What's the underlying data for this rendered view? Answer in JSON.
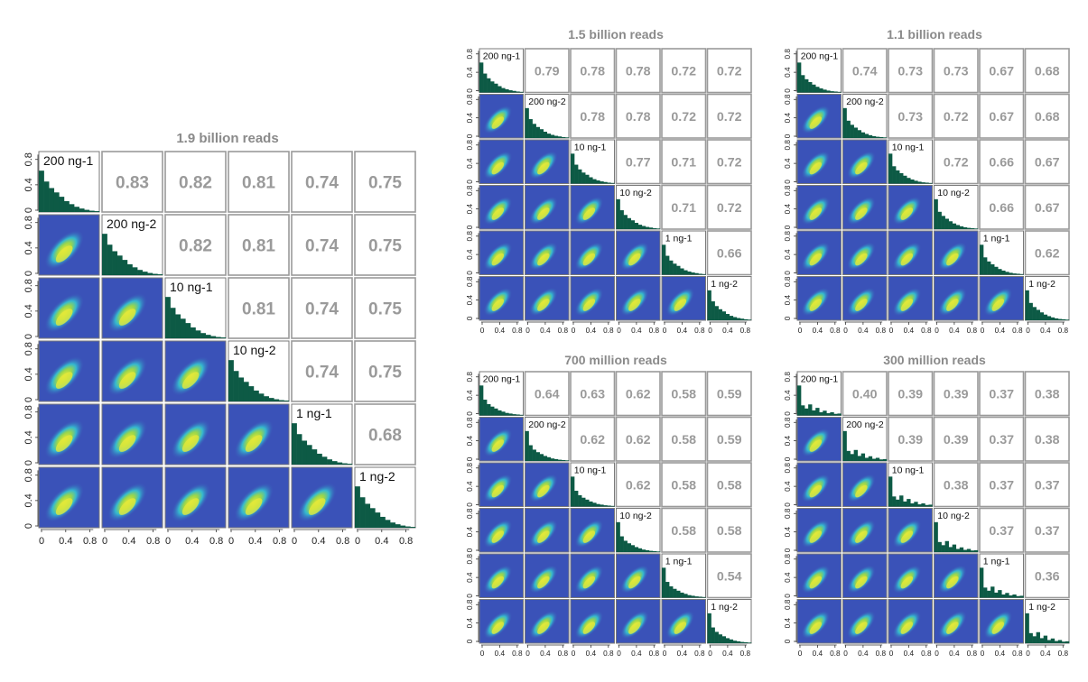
{
  "colors": {
    "histogram": "#0d5a45",
    "correlation_text": "#9a9a9a",
    "title_text": "#8a8a8a",
    "panel_border": "#9a9a9a",
    "density_low": "#3a52b8",
    "density_mid": "#35b9cf",
    "density_high": "#e3e83a"
  },
  "chart_data": [
    {
      "type": "heatmap",
      "title": "1.9 billion reads",
      "samples": [
        "200 ng-1",
        "200 ng-2",
        "10 ng-1",
        "10 ng-2",
        "1 ng-1",
        "1 ng-2"
      ],
      "correlations": [
        [
          "0.83",
          "0.82",
          "0.81",
          "0.74",
          "0.75"
        ],
        [
          "0.82",
          "0.81",
          "0.74",
          "0.75"
        ],
        [
          "0.81",
          "0.74",
          "0.75"
        ],
        [
          "0.74",
          "0.75"
        ],
        [
          "0.68"
        ]
      ],
      "histogram_density": [
        0.95,
        0.7,
        0.55,
        0.45,
        0.35,
        0.25,
        0.18,
        0.12,
        0.08,
        0.05,
        0.03,
        0.02
      ],
      "tick_labels": [
        "0",
        "0.4",
        "0.8"
      ],
      "xlim": [
        0,
        1
      ],
      "ylim": [
        0,
        1
      ]
    },
    {
      "type": "heatmap",
      "title": "1.5 billion reads",
      "samples": [
        "200 ng-1",
        "200 ng-2",
        "10 ng-1",
        "10 ng-2",
        "1 ng-1",
        "1 ng-2"
      ],
      "correlations": [
        [
          "0.79",
          "0.78",
          "0.78",
          "0.72",
          "0.72"
        ],
        [
          "0.78",
          "0.78",
          "0.72",
          "0.72"
        ],
        [
          "0.77",
          "0.71",
          "0.72"
        ],
        [
          "0.71",
          "0.72"
        ],
        [
          "0.66"
        ]
      ],
      "histogram_density": [
        0.95,
        0.6,
        0.45,
        0.35,
        0.28,
        0.2,
        0.14,
        0.1,
        0.07,
        0.05,
        0.03,
        0.02
      ],
      "tick_labels": [
        "0",
        "0.4",
        "0.8"
      ],
      "xlim": [
        0,
        1
      ],
      "ylim": [
        0,
        1
      ]
    },
    {
      "type": "heatmap",
      "title": "1.1 billion reads",
      "samples": [
        "200 ng-1",
        "200 ng-2",
        "10 ng-1",
        "10 ng-2",
        "1 ng-1",
        "1 ng-2"
      ],
      "correlations": [
        [
          "0.74",
          "0.73",
          "0.73",
          "0.67",
          "0.68"
        ],
        [
          "0.73",
          "0.72",
          "0.67",
          "0.68"
        ],
        [
          "0.72",
          "0.66",
          "0.67"
        ],
        [
          "0.66",
          "0.67"
        ],
        [
          "0.62"
        ]
      ],
      "histogram_density": [
        0.95,
        0.55,
        0.42,
        0.33,
        0.25,
        0.18,
        0.13,
        0.09,
        0.06,
        0.04,
        0.03,
        0.02
      ],
      "tick_labels": [
        "0",
        "0.4",
        "0.8"
      ],
      "xlim": [
        0,
        1
      ],
      "ylim": [
        0,
        1
      ]
    },
    {
      "type": "heatmap",
      "title": "700 million reads",
      "samples": [
        "200 ng-1",
        "200 ng-2",
        "10 ng-1",
        "10 ng-2",
        "1 ng-1",
        "1 ng-2"
      ],
      "correlations": [
        [
          "0.64",
          "0.63",
          "0.62",
          "0.58",
          "0.59"
        ],
        [
          "0.62",
          "0.62",
          "0.58",
          "0.59"
        ],
        [
          "0.62",
          "0.58",
          "0.58"
        ],
        [
          "0.58",
          "0.58"
        ],
        [
          "0.54"
        ]
      ],
      "histogram_density": [
        0.95,
        0.5,
        0.36,
        0.28,
        0.22,
        0.16,
        0.12,
        0.08,
        0.06,
        0.04,
        0.03,
        0.02
      ],
      "tick_labels": [
        "0",
        "0.4",
        "0.8"
      ],
      "xlim": [
        0,
        1
      ],
      "ylim": [
        0,
        1
      ]
    },
    {
      "type": "heatmap",
      "title": "300 million reads",
      "samples": [
        "200 ng-1",
        "200 ng-2",
        "10 ng-1",
        "10 ng-2",
        "1 ng-1",
        "1 ng-2"
      ],
      "correlations": [
        [
          "0.40",
          "0.39",
          "0.39",
          "0.37",
          "0.38"
        ],
        [
          "0.39",
          "0.39",
          "0.37",
          "0.38"
        ],
        [
          "0.38",
          "0.37",
          "0.37"
        ],
        [
          "0.37",
          "0.37"
        ],
        [
          "0.36"
        ]
      ],
      "histogram_density": [
        0.95,
        0.32,
        0.22,
        0.35,
        0.16,
        0.24,
        0.1,
        0.15,
        0.07,
        0.1,
        0.05,
        0.06
      ],
      "tick_labels": [
        "0",
        "0.4",
        "0.8"
      ],
      "xlim": [
        0,
        1
      ],
      "ylim": [
        0,
        1
      ]
    }
  ]
}
